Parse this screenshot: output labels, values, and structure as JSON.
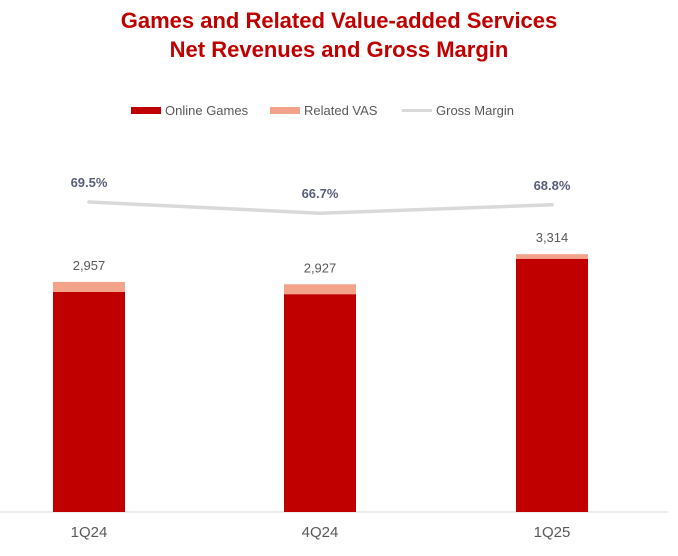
{
  "title_line1": "Games and Related Value-added Services",
  "title_line2": "Net Revenues and Gross Margin",
  "legend": {
    "online_games": "Online Games",
    "related_vas": "Related VAS",
    "gross_margin": "Gross Margin"
  },
  "colors": {
    "title": "#C00000",
    "online_games": "#C00000",
    "related_vas": "#F4A38B",
    "gross_margin": "#D9D9D9",
    "margin_label": "#595f7a",
    "total_label": "#595959",
    "axis_label": "#595959"
  },
  "chart_data": {
    "type": "bar",
    "stacked": true,
    "categories": [
      "1Q24",
      "4Q24",
      "1Q25"
    ],
    "series": [
      {
        "name": "Online Games",
        "values": [
          2830,
          2800,
          3255
        ]
      },
      {
        "name": "Related VAS",
        "values": [
          127,
          127,
          59
        ]
      }
    ],
    "totals": [
      2957,
      2927,
      3314
    ],
    "total_labels": [
      "2,957",
      "2,927",
      "3,314"
    ],
    "line_series": {
      "name": "Gross Margin",
      "values": [
        69.5,
        66.7,
        68.8
      ],
      "labels": [
        "69.5%",
        "66.7%",
        "68.8%"
      ]
    },
    "legend_position": "top",
    "grid": false
  }
}
